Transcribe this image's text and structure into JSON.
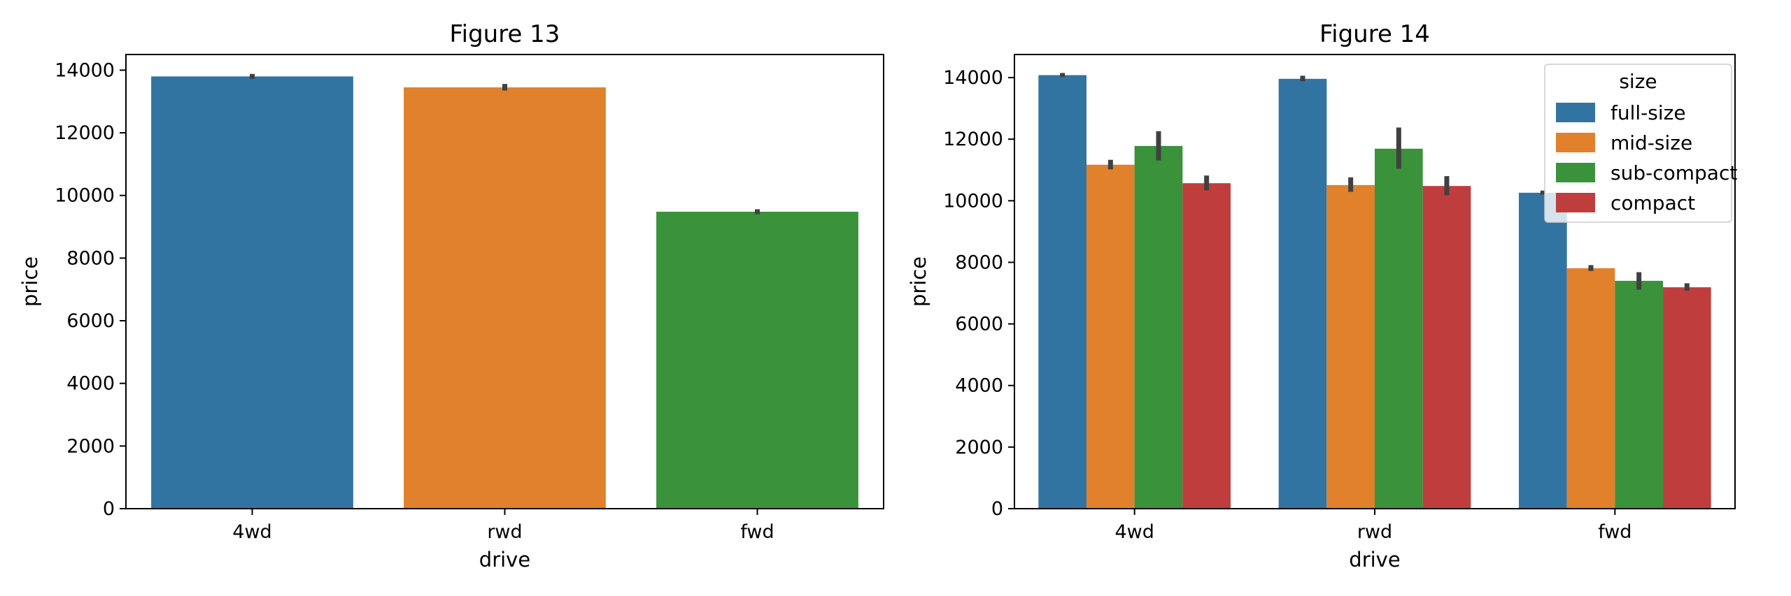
{
  "chart_data": [
    {
      "type": "bar",
      "title": "Figure 13",
      "xlabel": "drive",
      "ylabel": "price",
      "categories": [
        "4wd",
        "rwd",
        "fwd"
      ],
      "values": [
        13800,
        13450,
        9480
      ],
      "errors": [
        [
          13720,
          13880
        ],
        [
          13350,
          13560
        ],
        [
          9400,
          9560
        ]
      ],
      "colors": [
        "#3274a1",
        "#e1812c",
        "#3a923a"
      ],
      "ylim": [
        0,
        14500
      ],
      "yticks": [
        0,
        2000,
        4000,
        6000,
        8000,
        10000,
        12000,
        14000
      ],
      "grid": false
    },
    {
      "type": "bar",
      "title": "Figure 14",
      "xlabel": "drive",
      "ylabel": "price",
      "categories": [
        "4wd",
        "rwd",
        "fwd"
      ],
      "legend": {
        "title": "size",
        "position": "upper right"
      },
      "series": [
        {
          "name": "full-size",
          "color": "#3274a1",
          "values": [
            14080,
            13960,
            10260
          ],
          "errors": [
            [
              14020,
              14150
            ],
            [
              13880,
              14060
            ],
            [
              10200,
              10330
            ]
          ]
        },
        {
          "name": "mid-size",
          "color": "#e1812c",
          "values": [
            11170,
            10510,
            7810
          ],
          "errors": [
            [
              11020,
              11330
            ],
            [
              10290,
              10760
            ],
            [
              7720,
              7910
            ]
          ]
        },
        {
          "name": "sub-compact",
          "color": "#3a923a",
          "values": [
            11780,
            11690,
            7400
          ],
          "errors": [
            [
              11310,
              12260
            ],
            [
              11040,
              12380
            ],
            [
              7110,
              7680
            ]
          ]
        },
        {
          "name": "compact",
          "color": "#c03d3e",
          "values": [
            10570,
            10480,
            7190
          ],
          "errors": [
            [
              10340,
              10820
            ],
            [
              10180,
              10800
            ],
            [
              7080,
              7320
            ]
          ]
        }
      ],
      "ylim": [
        0,
        14750
      ],
      "yticks": [
        0,
        2000,
        4000,
        6000,
        8000,
        10000,
        12000,
        14000
      ],
      "grid": false
    }
  ]
}
